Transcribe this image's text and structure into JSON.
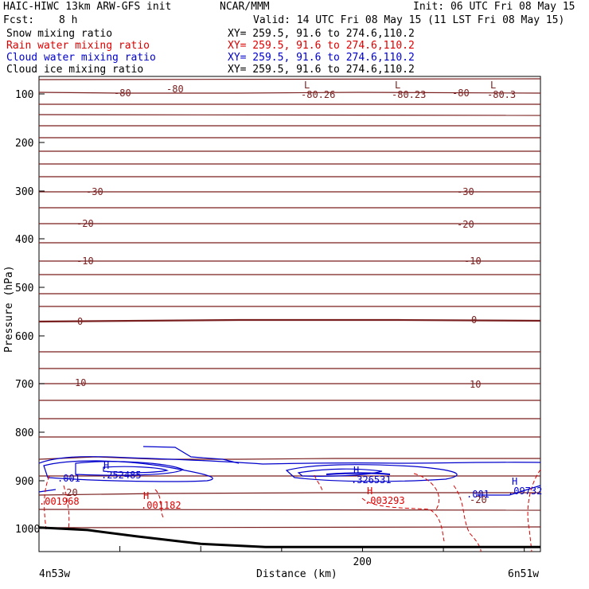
{
  "header": {
    "model": "HAIC-HIWC 13km ARW-GFS init",
    "org": "NCAR/MMM",
    "init": "Init: 06 UTC Fri 08 May 15",
    "fcst_label": "Fcst:",
    "fcst_value": "8 h",
    "valid": "Valid: 14 UTC Fri 08 May 15 (11 LST Fri 08 May 15)"
  },
  "fields": [
    {
      "name": "Snow mixing ratio",
      "xy": "XY= 259.5, 91.6 to 274.6,110.2",
      "color": "#000000"
    },
    {
      "name": "Rain water mixing ratio",
      "xy": "XY= 259.5, 91.6 to 274.6,110.2",
      "color": "#dd0000"
    },
    {
      "name": "Cloud water mixing ratio",
      "xy": "XY= 259.5, 91.6 to 274.6,110.2",
      "color": "#0000cc"
    },
    {
      "name": "Cloud ice mixing ratio",
      "xy": "XY= 259.5, 91.6 to 274.6,110.2",
      "color": "#000000"
    }
  ],
  "colors": {
    "temperature": "#7a1f1f",
    "rain": "#dd0000",
    "cloud_water": "#0000cc",
    "terrain": "#000000"
  },
  "chart_data": {
    "type": "line",
    "ylabel": "Pressure (hPa)",
    "xlabel": "Distance (km)",
    "xlim": [
      0,
      310
    ],
    "ylim": [
      1015,
      60
    ],
    "y_tick_labels": [
      "100",
      "200",
      "300",
      "400",
      "500",
      "600",
      "700",
      "800",
      "900",
      "1000"
    ],
    "y_ticks": [
      100,
      200,
      300,
      400,
      500,
      600,
      700,
      800,
      900,
      1000
    ],
    "x_tick_labels": [
      "200"
    ],
    "x_ticks": [
      200
    ],
    "x_end_left": "4n53w",
    "x_end_right": "6n51w",
    "temperature_labels": [
      "-80",
      "-80",
      "-80",
      "-30",
      "-30",
      "-20",
      "-20",
      "-10",
      "-10",
      "0",
      "0",
      "10",
      "10",
      "-20",
      "-20"
    ],
    "extrema_labels": [
      {
        "mark": "L",
        "value": "-80.26",
        "color": "#7a1f1f"
      },
      {
        "mark": "L",
        "value": "-80.23",
        "color": "#7a1f1f"
      },
      {
        "mark": "L",
        "value": "-80.3",
        "color": "#7a1f1f"
      },
      {
        "mark": "H",
        "value": ".252485",
        "color": "#0000cc"
      },
      {
        "mark": "H",
        "value": ".326531",
        "color": "#0000cc"
      },
      {
        "mark": "H",
        "value": ".09732",
        "color": "#0000cc"
      },
      {
        "mark": "H",
        "value": ".001182",
        "color": "#dd0000"
      },
      {
        "mark": "H",
        "value": ".003293",
        "color": "#dd0000"
      },
      {
        "mark": "",
        "value": ".001968",
        "color": "#dd0000"
      },
      {
        "mark": "",
        "value": ".001",
        "color": "#0000cc"
      },
      {
        "mark": "",
        "value": ".001",
        "color": "#0000cc"
      }
    ],
    "terrain_pressure": [
      {
        "x": 0,
        "p": 998
      },
      {
        "x": 30,
        "p": 1001
      },
      {
        "x": 60,
        "p": 1005
      },
      {
        "x": 100,
        "p": 1010
      },
      {
        "x": 140,
        "p": 1012
      },
      {
        "x": 200,
        "p": 1012
      },
      {
        "x": 260,
        "p": 1012
      },
      {
        "x": 310,
        "p": 1012
      }
    ]
  }
}
